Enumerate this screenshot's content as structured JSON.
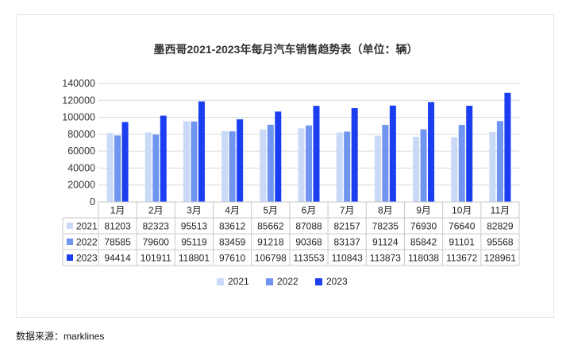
{
  "source_label": "数据来源：marklines",
  "chart_data": {
    "type": "bar",
    "title": "墨西哥2021-2023年每月汽车销售趋势表（单位：辆）",
    "categories": [
      "1月",
      "2月",
      "3月",
      "4月",
      "5月",
      "6月",
      "7月",
      "8月",
      "9月",
      "10月",
      "11月"
    ],
    "series": [
      {
        "name": "2021",
        "color": "#c9d9f7",
        "values": [
          81203,
          82323,
          95513,
          83612,
          85662,
          87088,
          82157,
          78235,
          76930,
          76640,
          82829
        ]
      },
      {
        "name": "2022",
        "color": "#6f95f0",
        "values": [
          78585,
          79600,
          95119,
          83459,
          91218,
          90368,
          83137,
          91124,
          85842,
          91101,
          95568
        ]
      },
      {
        "name": "2023",
        "color": "#1a3ef0",
        "values": [
          94414,
          101911,
          118801,
          97610,
          106798,
          113553,
          110843,
          113873,
          118038,
          113672,
          128961
        ]
      }
    ],
    "yticks": [
      "0",
      "20000",
      "40000",
      "60000",
      "80000",
      "100000",
      "120000",
      "140000"
    ],
    "ylim": [
      0,
      140000
    ],
    "grid": true,
    "legend_position": "bottom",
    "data_table": true
  }
}
